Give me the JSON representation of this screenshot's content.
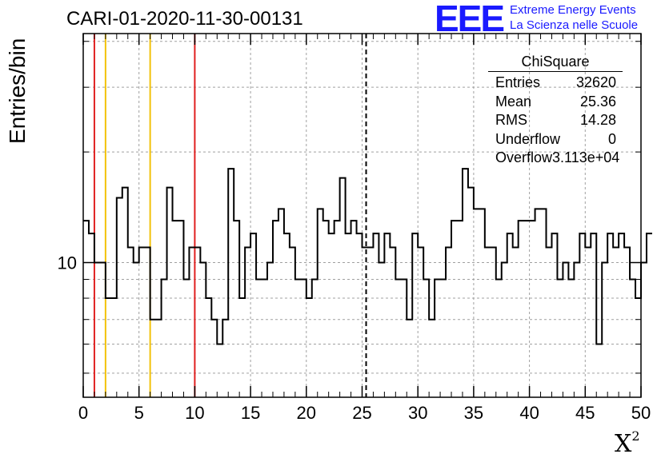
{
  "title": "CARI-01-2020-11-30-00131",
  "logo": {
    "mark": "EEE",
    "line1": "Extreme Energy Events",
    "line2": "La Scienza nelle Scuole",
    "color": "#1a1aff"
  },
  "stats": {
    "name": "ChiSquare",
    "rows": [
      {
        "label": "Entries",
        "value": "32620"
      },
      {
        "label": "Mean",
        "value": "25.36"
      },
      {
        "label": "RMS",
        "value": "14.28"
      },
      {
        "label": "Underflow",
        "value": "0"
      },
      {
        "label": "Overflow",
        "value": "3.113e+04"
      }
    ]
  },
  "chart_data": {
    "type": "histogram",
    "xlabel": "X",
    "xlabel_sup": "2",
    "ylabel": "Entries/bin",
    "xlim": [
      0,
      50
    ],
    "ylim_log": [
      4.3,
      42
    ],
    "yscale": "log",
    "bin_width": 0.5,
    "x_ticks": [
      "0",
      "5",
      "10",
      "15",
      "20",
      "25",
      "30",
      "35",
      "40",
      "45",
      "50"
    ],
    "y_tick_labels": [
      {
        "value": 10,
        "label": "10"
      }
    ],
    "grid": true,
    "vertical_lines": [
      {
        "x": 1,
        "color": "#e02020",
        "style": "solid"
      },
      {
        "x": 2,
        "color": "#f2c20a",
        "style": "solid"
      },
      {
        "x": 6,
        "color": "#f2c20a",
        "style": "solid"
      },
      {
        "x": 10,
        "color": "#e02020",
        "style": "solid"
      },
      {
        "x": 25.36,
        "color": "#000000",
        "style": "dashed"
      }
    ],
    "values": [
      13,
      12,
      10,
      10,
      8,
      8,
      15,
      16,
      11,
      10,
      11,
      11,
      7,
      7,
      9,
      16,
      13,
      13,
      9,
      11,
      11,
      10,
      8,
      7,
      6,
      7,
      18,
      13,
      8,
      11,
      12,
      9,
      9,
      10,
      13,
      14,
      12,
      11,
      9,
      9,
      8,
      9,
      14,
      13,
      12,
      13,
      17,
      12,
      13,
      12,
      11,
      11,
      12,
      10,
      12,
      11,
      9,
      9,
      7,
      12,
      11,
      9,
      7,
      9,
      9,
      11,
      13,
      13,
      18,
      16,
      14,
      14,
      11,
      11,
      9,
      10,
      12,
      11,
      13,
      13,
      13,
      14,
      14,
      11,
      12,
      9,
      10,
      9,
      10,
      12,
      11,
      12,
      6,
      10,
      12,
      11,
      12,
      11,
      9,
      8,
      10,
      12
    ]
  }
}
